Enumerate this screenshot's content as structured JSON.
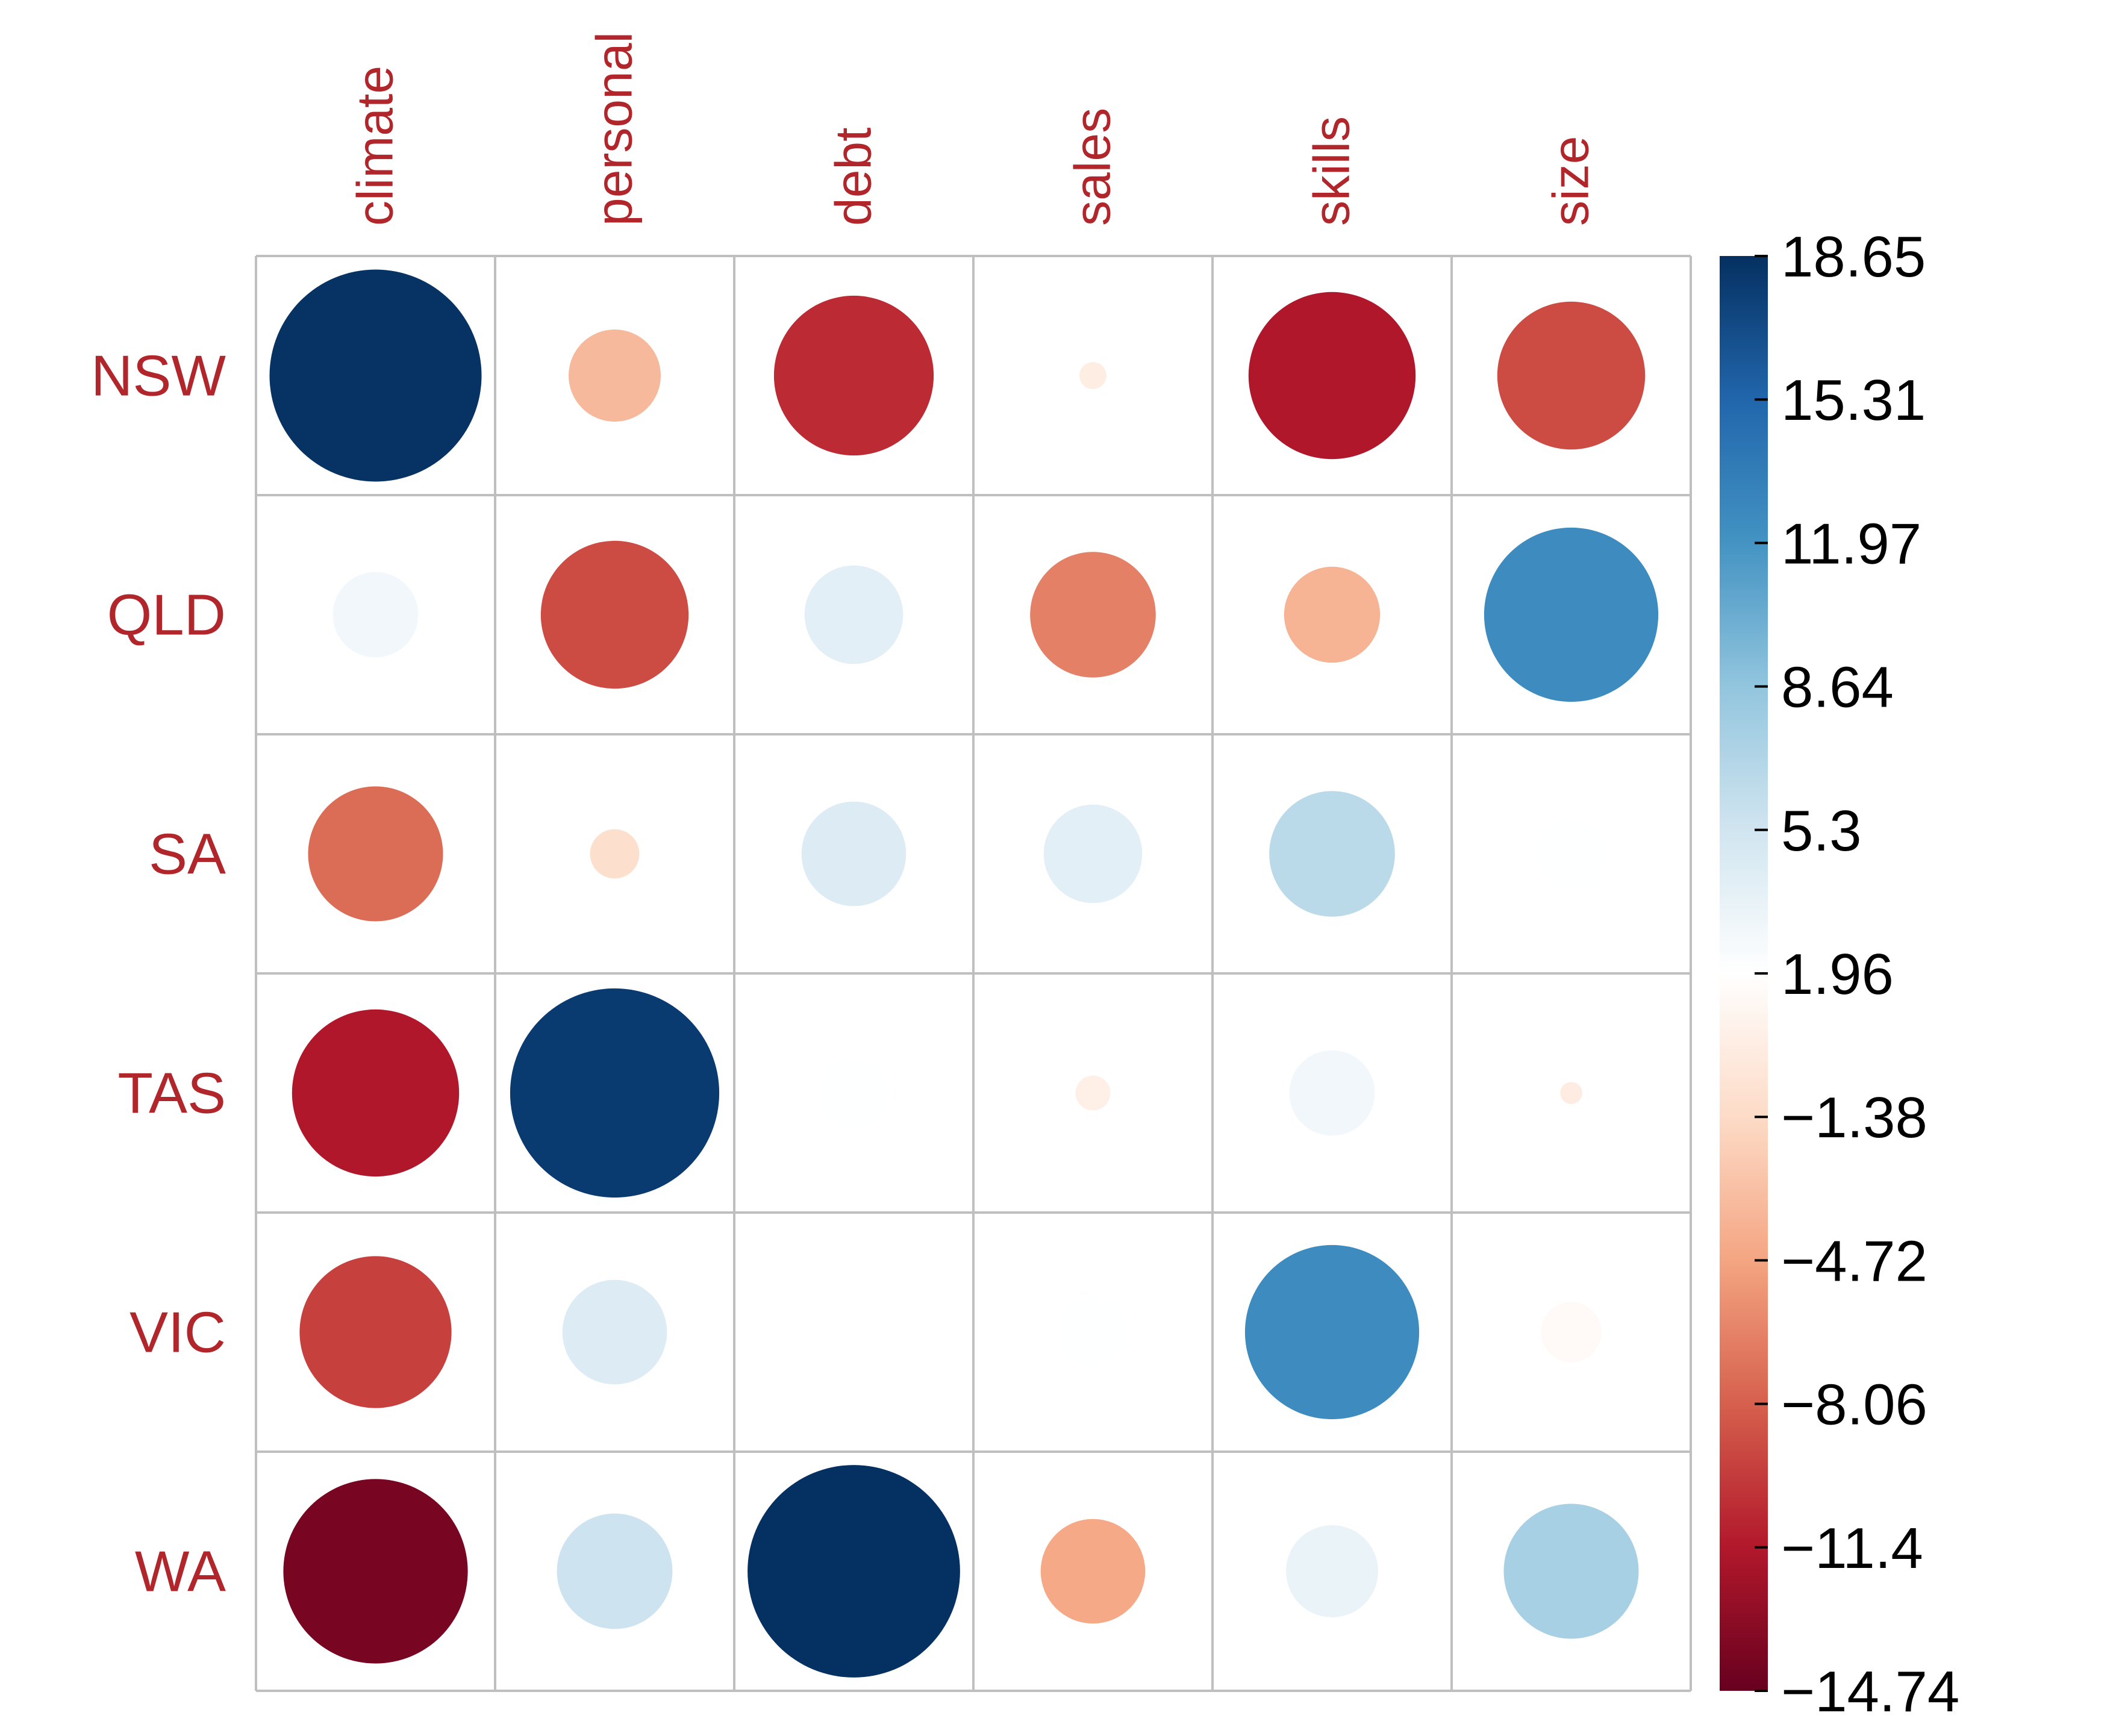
{
  "chart_data": {
    "type": "heatmap",
    "rows": [
      "NSW",
      "QLD",
      "SA",
      "TAS",
      "VIC",
      "WA"
    ],
    "columns": [
      "climate",
      "personal",
      "debt",
      "sales",
      "skills",
      "size"
    ],
    "values": [
      [
        18.5,
        -3.5,
        -10.5,
        0.3,
        -11.5,
        -9.0
      ],
      [
        3.0,
        -9.0,
        4.0,
        -6.5,
        -3.8,
        12.5
      ],
      [
        -7.5,
        -1.0,
        4.5,
        4.0,
        6.5,
        2.0
      ],
      [
        -11.5,
        18.0,
        2.0,
        0.5,
        3.0,
        0.2
      ],
      [
        -9.5,
        4.5,
        0.0,
        2.0,
        12.5,
        1.5
      ],
      [
        -14.0,
        5.5,
        18.6,
        -4.5,
        3.5,
        7.5
      ]
    ],
    "marker": "circle",
    "colorbar": {
      "min": -14.74,
      "max": 18.65,
      "ticks": [
        "18.65",
        "15.31",
        "11.97",
        "8.64",
        "5.3",
        "1.96",
        "−1.38",
        "−4.72",
        "−8.06",
        "−11.4",
        "−14.74"
      ],
      "colors": [
        "#67001f",
        "#b2182b",
        "#d6604d",
        "#f4a582",
        "#fddbc7",
        "#ffffff",
        "#d1e5f0",
        "#92c5de",
        "#4393c3",
        "#2166ac",
        "#053061"
      ]
    }
  }
}
